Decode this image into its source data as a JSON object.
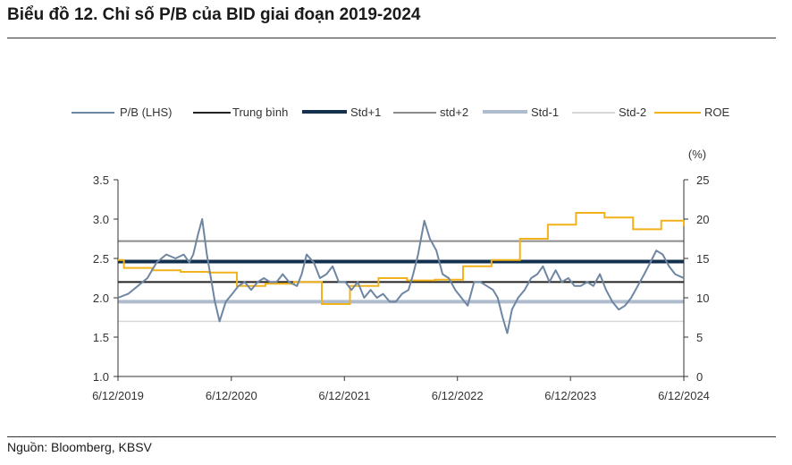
{
  "title": "Biểu đồ 12. Chỉ số P/B của BID giai đoạn 2019-2024",
  "source": "Nguồn: Bloomberg, KBSV",
  "colors": {
    "pb": "#6f86a3",
    "mean": "#222222",
    "std_plus1": "#13304f",
    "std_plus2": "#8c8c8c",
    "std_minus1": "#aebccd",
    "std_minus2": "#d8d8d8",
    "roe": "#f2b21b"
  },
  "chart_data": {
    "type": "line",
    "title": "",
    "right_axis_unit": "(%)",
    "legend": [
      "P/B (LHS)",
      "Trung bình",
      "Std+1",
      "std+2",
      "Std-1",
      "Std-2",
      "ROE"
    ],
    "legend_position": "top",
    "grid": false,
    "y_left": {
      "range": [
        1.0,
        3.5
      ],
      "ticks": [
        "1.0",
        "1.5",
        "2.0",
        "2.5",
        "3.0",
        "3.5"
      ]
    },
    "y_right": {
      "range": [
        0,
        25
      ],
      "ticks": [
        "0",
        "5",
        "10",
        "15",
        "20",
        "25"
      ]
    },
    "x_ticks": [
      "6/12/2019",
      "6/12/2020",
      "6/12/2021",
      "6/12/2022",
      "6/12/2023",
      "6/12/2024"
    ],
    "x_range": [
      "2019-06-12",
      "2024-06-12"
    ],
    "reference_lines": [
      {
        "name": "Trung bình",
        "value": 2.2
      },
      {
        "name": "Std+1",
        "value": 2.46
      },
      {
        "name": "std+2",
        "value": 2.72
      },
      {
        "name": "Std-1",
        "value": 1.95
      },
      {
        "name": "Std-2",
        "value": 1.7
      }
    ],
    "pb_series": {
      "name": "P/B (LHS)",
      "x": [
        "2019-06-12",
        "2019-07-15",
        "2019-08-15",
        "2019-09-15",
        "2019-10-15",
        "2019-11-15",
        "2019-12-15",
        "2020-01-10",
        "2020-01-28",
        "2020-02-10",
        "2020-02-25",
        "2020-03-10",
        "2020-03-25",
        "2020-04-05",
        "2020-04-20",
        "2020-05-05",
        "2020-05-25",
        "2020-06-15",
        "2020-07-05",
        "2020-07-25",
        "2020-08-15",
        "2020-09-05",
        "2020-09-25",
        "2020-10-15",
        "2020-11-05",
        "2020-11-25",
        "2020-12-15",
        "2021-01-10",
        "2021-01-25",
        "2021-02-10",
        "2021-03-05",
        "2021-03-25",
        "2021-04-15",
        "2021-05-05",
        "2021-05-25",
        "2021-06-15",
        "2021-07-05",
        "2021-07-25",
        "2021-08-15",
        "2021-09-05",
        "2021-09-25",
        "2021-10-15",
        "2021-11-05",
        "2021-11-25",
        "2021-12-15",
        "2022-01-05",
        "2022-01-20",
        "2022-02-05",
        "2022-02-25",
        "2022-03-15",
        "2022-04-05",
        "2022-04-25",
        "2022-05-15",
        "2022-06-05",
        "2022-06-25",
        "2022-07-15",
        "2022-08-05",
        "2022-08-25",
        "2022-09-15",
        "2022-10-05",
        "2022-10-20",
        "2022-11-05",
        "2022-11-20",
        "2022-12-05",
        "2022-12-25",
        "2023-01-15",
        "2023-02-05",
        "2023-02-25",
        "2023-03-15",
        "2023-04-05",
        "2023-04-25",
        "2023-05-15",
        "2023-06-05",
        "2023-06-25",
        "2023-07-15",
        "2023-08-05",
        "2023-08-25",
        "2023-09-15",
        "2023-10-05",
        "2023-10-25",
        "2023-11-15",
        "2023-12-05",
        "2023-12-25",
        "2024-01-15",
        "2024-02-05",
        "2024-02-25",
        "2024-03-15",
        "2024-04-05",
        "2024-04-25",
        "2024-05-15",
        "2024-06-12"
      ],
      "values": [
        2.0,
        2.05,
        2.15,
        2.25,
        2.45,
        2.55,
        2.5,
        2.55,
        2.45,
        2.55,
        2.8,
        3.0,
        2.55,
        2.3,
        1.95,
        1.7,
        1.95,
        2.05,
        2.15,
        2.2,
        2.1,
        2.2,
        2.25,
        2.2,
        2.2,
        2.3,
        2.2,
        2.15,
        2.3,
        2.55,
        2.45,
        2.25,
        2.3,
        2.4,
        2.2,
        2.2,
        2.1,
        2.2,
        2.0,
        2.1,
        2.0,
        2.05,
        1.95,
        1.95,
        2.05,
        2.1,
        2.3,
        2.55,
        2.98,
        2.75,
        2.6,
        2.3,
        2.25,
        2.1,
        2.0,
        1.9,
        2.2,
        2.2,
        2.15,
        2.1,
        2.0,
        1.75,
        1.55,
        1.85,
        2.0,
        2.1,
        2.25,
        2.3,
        2.4,
        2.2,
        2.35,
        2.2,
        2.25,
        2.15,
        2.15,
        2.2,
        2.15,
        2.3,
        2.1,
        1.95,
        1.85,
        1.9,
        2.0,
        2.15,
        2.3,
        2.45,
        2.6,
        2.55,
        2.4,
        2.3,
        2.25
      ]
    },
    "roe_series": {
      "name": "ROE",
      "unit": "%",
      "x": [
        "2019-06-12",
        "2019-07-01",
        "2019-09-30",
        "2019-12-31",
        "2020-03-31",
        "2020-06-30",
        "2020-09-30",
        "2020-12-31",
        "2021-03-31",
        "2021-06-30",
        "2021-09-30",
        "2021-12-31",
        "2022-03-31",
        "2022-06-30",
        "2022-09-30",
        "2022-12-31",
        "2023-03-31",
        "2023-06-30",
        "2023-09-30",
        "2023-12-31",
        "2024-03-31",
        "2024-06-12"
      ],
      "values": [
        14.8,
        13.8,
        13.5,
        13.3,
        13.2,
        11.5,
        11.8,
        12.0,
        9.2,
        11.5,
        12.5,
        12.2,
        12.3,
        14.0,
        14.8,
        17.5,
        19.3,
        20.8,
        20.2,
        18.7,
        19.8,
        19.1
      ]
    }
  }
}
